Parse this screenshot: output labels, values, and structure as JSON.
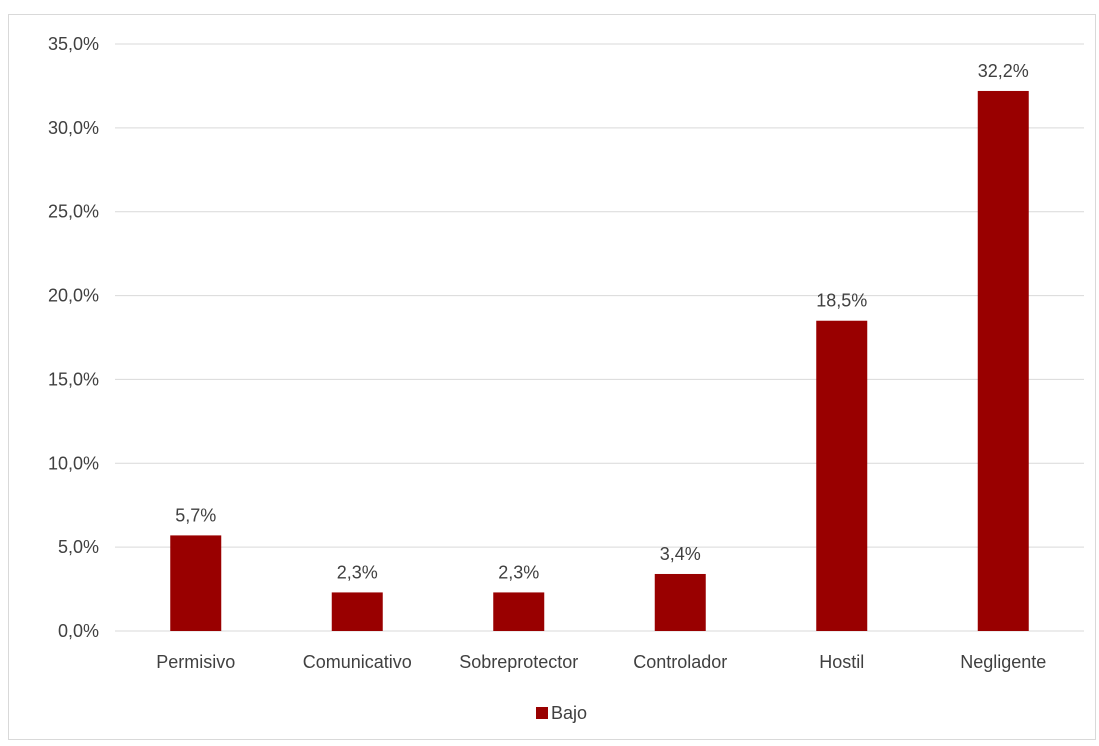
{
  "chart_data": {
    "type": "bar",
    "categories": [
      "Permisivo",
      "Comunicativo",
      "Sobreprotector",
      "Controlador",
      "Hostil",
      "Negligente"
    ],
    "series": [
      {
        "name": "Bajo",
        "values": [
          5.7,
          2.3,
          2.3,
          3.4,
          18.5,
          32.2
        ],
        "labels": [
          "5,7%",
          "2,3%",
          "2,3%",
          "3,4%",
          "18,5%",
          "32,2%"
        ]
      }
    ],
    "yticks": [
      "0,0%",
      "5,0%",
      "10,0%",
      "15,0%",
      "20,0%",
      "25,0%",
      "30,0%",
      "35,0%"
    ],
    "ylim": [
      0,
      35
    ],
    "grid": true,
    "legend_position": "bottom",
    "bar_color": "#990000",
    "gridline_color": "#d9d9d9",
    "title": "",
    "xlabel": "",
    "ylabel": ""
  }
}
